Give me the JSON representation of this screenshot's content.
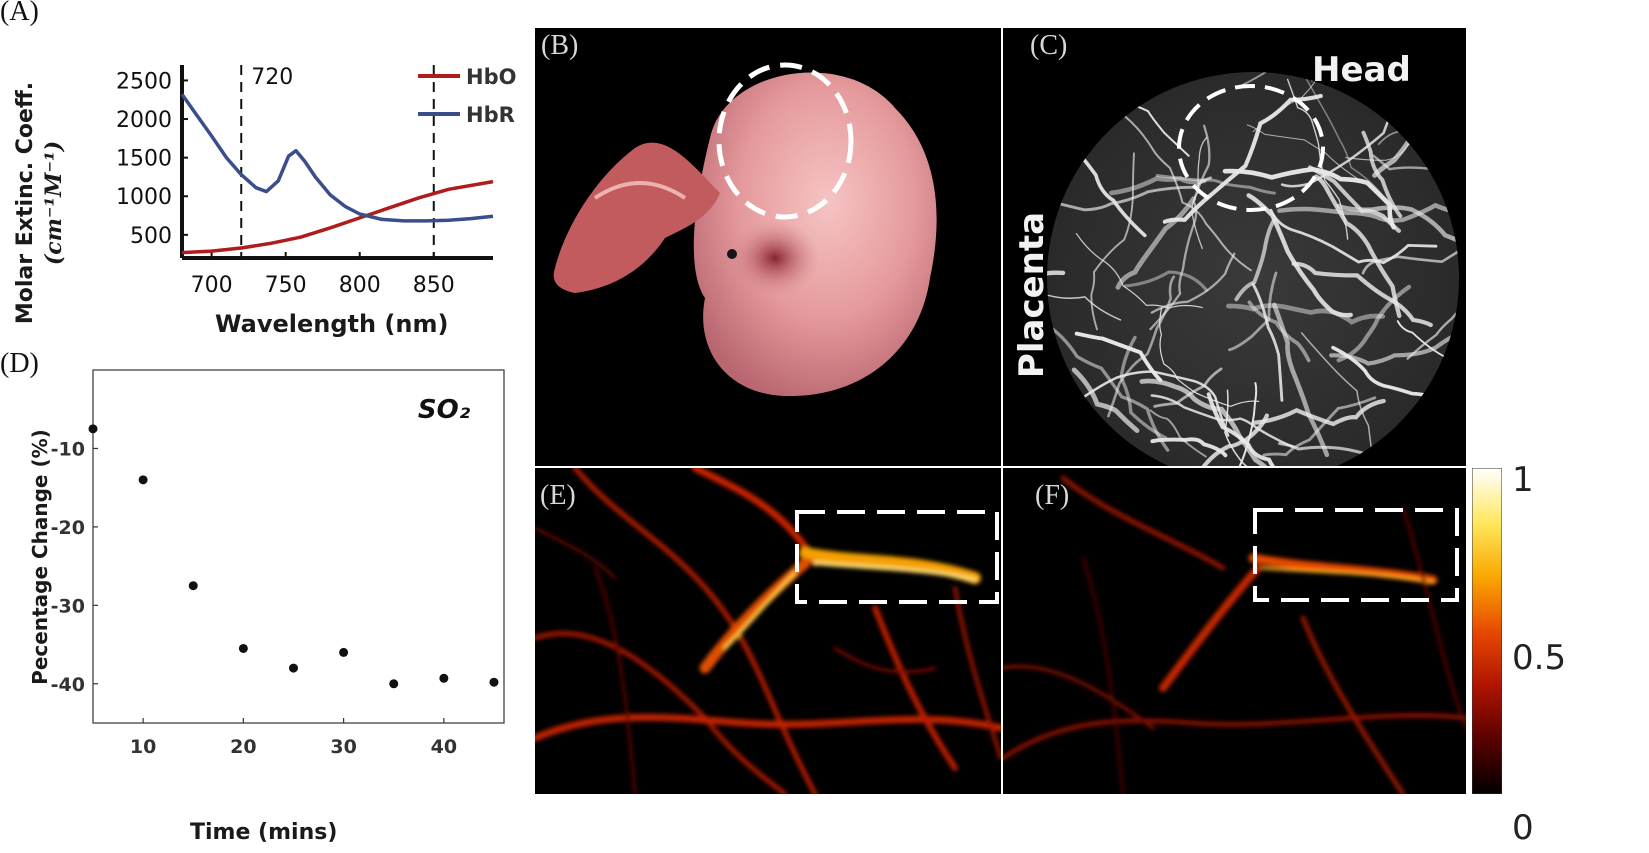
{
  "panels": {
    "a": {
      "letter": "(A)"
    },
    "b": {
      "letter": "(B)"
    },
    "c": {
      "letter": "(C)",
      "label_head": "Head",
      "label_placenta": "Placenta"
    },
    "d": {
      "letter": "(D)"
    },
    "e": {
      "letter": "(E)"
    },
    "f": {
      "letter": "(F)"
    }
  },
  "chart_data": [
    {
      "type": "line",
      "panel": "A",
      "title": "",
      "xlabel": "Wavelength (nm)",
      "ylabel_line1": "Molar Extinc. Coeff.",
      "ylabel_line2": "(cm⁻¹M⁻¹)",
      "xlim": [
        680,
        890
      ],
      "ylim": [
        200,
        2700
      ],
      "xticks": [
        700,
        750,
        800,
        850
      ],
      "yticks": [
        500,
        1000,
        1500,
        2000,
        2500
      ],
      "annotation": "720",
      "vlines": [
        720,
        850
      ],
      "legend_position": "top-right",
      "series": [
        {
          "name": "HbO",
          "color": "#b01c1c",
          "x": [
            680,
            700,
            720,
            740,
            760,
            780,
            800,
            820,
            840,
            860,
            890
          ],
          "y": [
            270,
            290,
            330,
            390,
            470,
            590,
            720,
            850,
            980,
            1090,
            1190
          ]
        },
        {
          "name": "HbR",
          "color": "#3a4e8c",
          "x": [
            680,
            690,
            700,
            710,
            720,
            730,
            737,
            745,
            752,
            757,
            763,
            770,
            780,
            790,
            800,
            815,
            830,
            845,
            860,
            875,
            890
          ],
          "y": [
            2320,
            2050,
            1780,
            1500,
            1280,
            1110,
            1060,
            1200,
            1520,
            1590,
            1450,
            1250,
            1020,
            870,
            770,
            700,
            680,
            680,
            690,
            710,
            740
          ]
        }
      ]
    },
    {
      "type": "scatter",
      "panel": "D",
      "title": "SO₂",
      "xlabel": "Time (mins)",
      "ylabel": "Pecentage Change (%)",
      "xlim": [
        5,
        46
      ],
      "ylim": [
        -45,
        0
      ],
      "xticks": [
        10,
        20,
        30,
        40
      ],
      "yticks": [
        -10,
        -20,
        -30,
        -40
      ],
      "series": [
        {
          "x": [
            5,
            10,
            15,
            20,
            25,
            30,
            35,
            40,
            45
          ],
          "y": [
            -7.5,
            -14,
            -27.5,
            -35.5,
            -38,
            -36,
            -40,
            -39.3,
            -39.8
          ]
        }
      ]
    },
    {
      "type": "heatmap",
      "panel": "colorbar",
      "range": [
        0,
        1
      ],
      "ticks": [
        "1",
        "0.5",
        "0"
      ],
      "colors": [
        "#000000",
        "#5a0000",
        "#b01400",
        "#e84a00",
        "#f9a800",
        "#ffe860",
        "#ffffff"
      ]
    }
  ]
}
